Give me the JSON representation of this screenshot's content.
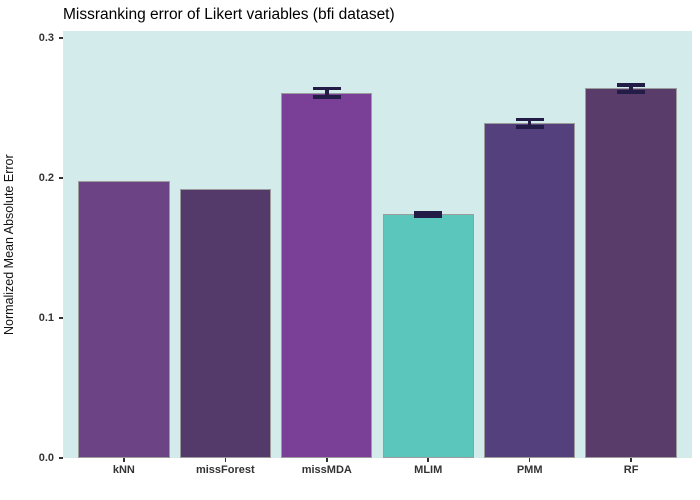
{
  "chart_data": {
    "type": "bar",
    "title": "Missranking error of Likert variables (bfi dataset)",
    "xlabel": "",
    "ylabel": "Normalized Mean Absolute Error",
    "categories": [
      "kNN",
      "missForest",
      "missMDA",
      "MLIM",
      "PMM",
      "RF"
    ],
    "values": [
      0.198,
      0.192,
      0.261,
      0.174,
      0.239,
      0.264
    ],
    "error_halfwidths": [
      0,
      0,
      0.003,
      0.0012,
      0.0027,
      0.0024
    ],
    "bar_colors": [
      "#6C4385",
      "#533A6B",
      "#7A3F97",
      "#5BC6BC",
      "#55407E",
      "#5A3C6B"
    ],
    "bar_border_color": "#9C9C9C",
    "errorbar_color": "#221C47",
    "panel_background": "#D3EBEB",
    "ylim": [
      0,
      0.3
    ],
    "yticks": [
      0,
      0.1,
      0.2,
      0.3
    ],
    "ytick_labels": [
      "0.0",
      "0.1",
      "0.2",
      "0.3"
    ],
    "axis_text_color": "#333333",
    "tick_mark_color": "#333333",
    "grid": false,
    "legend_position": "none"
  }
}
